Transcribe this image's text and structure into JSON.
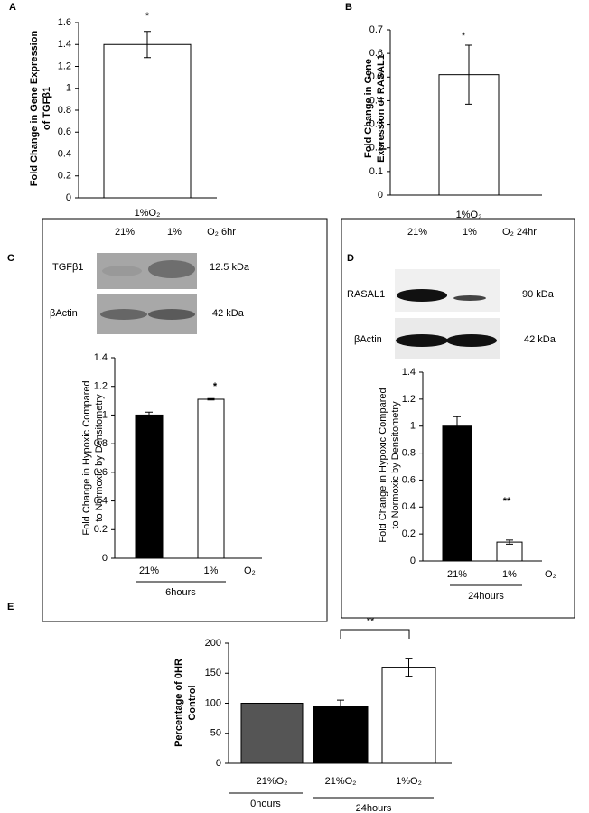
{
  "chart_data": [
    {
      "type": "bar",
      "panel": "A",
      "ylabel": [
        "Fold Change in Gene Expression",
        "of TGFβ1"
      ],
      "categories": [
        "1%O₂"
      ],
      "values": [
        1.4
      ],
      "errors": [
        0.12
      ],
      "colors": [
        "#ffffff"
      ],
      "ylim": [
        0,
        1.6
      ],
      "yticks": [
        0,
        0.2,
        0.4,
        0.6,
        0.8,
        1,
        1.2,
        1.4,
        1.6
      ],
      "annotations": [
        "*"
      ]
    },
    {
      "type": "bar",
      "panel": "B",
      "ylabel": [
        "Fold Change in Gene",
        "Expression of RASAL1"
      ],
      "categories": [
        "1%O₂"
      ],
      "values": [
        0.51
      ],
      "errors": [
        0.125
      ],
      "colors": [
        "#ffffff"
      ],
      "ylim": [
        0,
        0.7
      ],
      "yticks": [
        0,
        0.1,
        0.2,
        0.3,
        0.4,
        0.5,
        0.6,
        0.7
      ],
      "annotations": [
        "*"
      ]
    },
    {
      "type": "bar",
      "panel": "C",
      "blot": {
        "lanes": [
          "21%",
          "1%"
        ],
        "condition": "O₂ 6hr",
        "rows": [
          {
            "protein": "TGFβ1",
            "size": "12.5 kDa"
          },
          {
            "protein": "βActin",
            "size": "42 kDa"
          }
        ]
      },
      "ylabel": [
        "Fold Change in Hypoxic Compared",
        "to Normoxic by Densitometry"
      ],
      "categories": [
        "21%",
        "1%"
      ],
      "x_unit": "O₂",
      "values": [
        1.0,
        1.11
      ],
      "errors": [
        0.02,
        0.005
      ],
      "colors": [
        "#000000",
        "#ffffff"
      ],
      "ylim": [
        0,
        1.4
      ],
      "yticks": [
        0,
        0.2,
        0.4,
        0.6,
        0.8,
        1,
        1.2,
        1.4
      ],
      "group_labels": [
        "6hours"
      ],
      "annotations": [
        "*"
      ]
    },
    {
      "type": "bar",
      "panel": "D",
      "blot": {
        "lanes": [
          "21%",
          "1%"
        ],
        "condition": "O₂ 24hr",
        "rows": [
          {
            "protein": "RASAL1",
            "size": "90 kDa"
          },
          {
            "protein": "βActin",
            "size": "42 kDa"
          }
        ]
      },
      "ylabel": [
        "Fold Change in Hypoxic Compared",
        "to Normoxic by Densitometry"
      ],
      "categories": [
        "21%",
        "1%"
      ],
      "x_unit": "O₂",
      "values": [
        1.0,
        0.14
      ],
      "errors": [
        0.07,
        0.015
      ],
      "colors": [
        "#000000",
        "#ffffff"
      ],
      "ylim": [
        0,
        1.4
      ],
      "yticks": [
        0,
        0.2,
        0.4,
        0.6,
        0.8,
        1,
        1.2,
        1.4
      ],
      "group_labels": [
        "24hours"
      ],
      "annotations": [
        "**"
      ]
    },
    {
      "type": "bar",
      "panel": "E",
      "ylabel": [
        "Percentage of 0HR",
        "Control"
      ],
      "categories": [
        "21%O₂",
        "21%O₂",
        "1%O₂"
      ],
      "values": [
        100,
        95,
        160
      ],
      "errors": [
        0,
        10,
        15
      ],
      "colors": [
        "#555555",
        "#000000",
        "#ffffff"
      ],
      "ylim": [
        0,
        200
      ],
      "yticks": [
        0,
        50,
        100,
        150,
        200
      ],
      "group_labels": [
        "0hours",
        "24hours"
      ],
      "annotations": [
        "**"
      ]
    }
  ]
}
